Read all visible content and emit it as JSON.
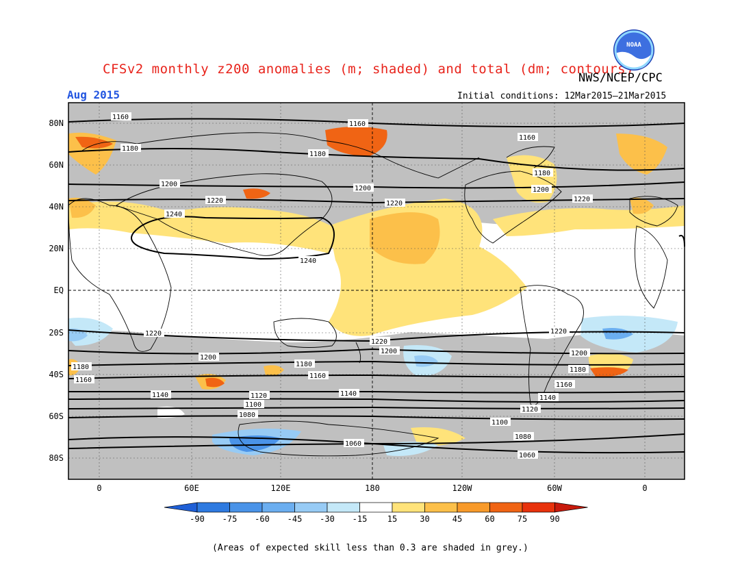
{
  "title": "CFSv2 monthly z200 anomalies (m; shaded) and total (dm; contours)",
  "agency": "NWS/NCEP/CPC",
  "logo_text": "NOAA",
  "period": "Aug 2015",
  "initial_conditions": "Initial conditions: 12Mar2015–21Mar2015",
  "footnote": "(Areas of expected skill less than 0.3 are shaded in grey.)",
  "colors": {
    "title": "#e8231b",
    "period": "#2255e0",
    "low_skill_grey": "#c0c0c0",
    "land_outline": "#000000"
  },
  "axes": {
    "lat_labels": [
      "80N",
      "60N",
      "40N",
      "20N",
      "EQ",
      "20S",
      "40S",
      "60S",
      "80S"
    ],
    "lon_labels": [
      "0",
      "60E",
      "120E",
      "180",
      "120W",
      "60W",
      "0"
    ]
  },
  "colorbar": {
    "labels": [
      "-90",
      "-75",
      "-60",
      "-45",
      "-30",
      "-15",
      "15",
      "30",
      "45",
      "60",
      "75",
      "90"
    ],
    "colors": [
      "#1f5fd6",
      "#2e7ae0",
      "#4a93e8",
      "#6baef0",
      "#97cbf5",
      "#c4e8f8",
      "#ffffff",
      "#ffe37a",
      "#fcc04a",
      "#f89a2a",
      "#f06414",
      "#e8320c",
      "#c81a0c"
    ]
  },
  "contour_labels": [
    "1160",
    "1180",
    "1200",
    "1220",
    "1240",
    "1220",
    "1200",
    "1180",
    "1160",
    "1140",
    "1120",
    "1100",
    "1080",
    "1060"
  ]
}
